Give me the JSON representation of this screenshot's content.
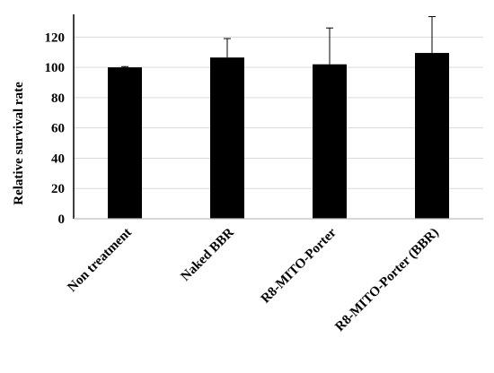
{
  "chart_data": {
    "type": "bar",
    "title": "",
    "xlabel": "",
    "ylabel": "Relative survival rate",
    "ylim": [
      0,
      135
    ],
    "yticks": [
      0,
      20,
      40,
      60,
      80,
      100,
      120
    ],
    "grid": true,
    "legend": "none",
    "categories": [
      "Non treatment",
      "Naked BBR",
      "R8-MITO-Porter",
      "R8-MITO-Porter (BBR)"
    ],
    "values": [
      100,
      106.5,
      102,
      109.5
    ],
    "error_bars": [
      0.5,
      12.5,
      24,
      24
    ],
    "colors": {
      "bar": "#000000",
      "grid": "#d9d9d9",
      "axis": "#000000"
    }
  }
}
